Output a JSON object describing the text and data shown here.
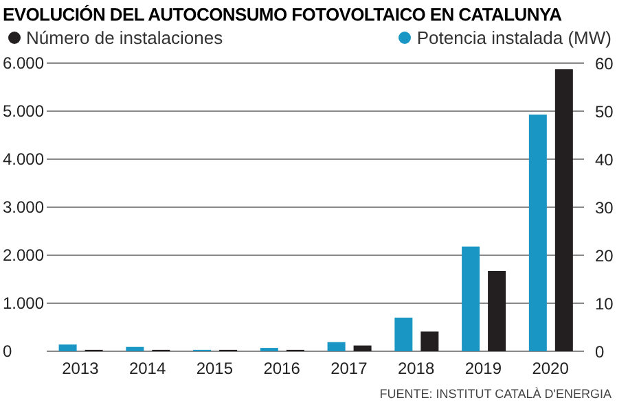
{
  "chart_data": {
    "type": "bar",
    "title": "EVOLUCIÓN DEL AUTOCONSUMO FOTOVOLTAICO EN CATALUNYA",
    "categories": [
      "2013",
      "2014",
      "2015",
      "2016",
      "2017",
      "2018",
      "2019",
      "2020"
    ],
    "series": [
      {
        "name": "Potencia instalada (MW)",
        "color": "#1a96c4",
        "axis": "y2",
        "values": [
          1.4,
          0.9,
          0.3,
          0.7,
          1.9,
          7.0,
          21.8,
          49.3
        ]
      },
      {
        "name": "Número de instalaciones",
        "color": "#231f20",
        "axis": "y",
        "values": [
          30,
          30,
          30,
          30,
          120,
          410,
          1670,
          5870
        ]
      }
    ],
    "ylim": [
      0,
      6000
    ],
    "yticks": [
      {
        "value": 0,
        "label": "0"
      },
      {
        "value": 1000,
        "label": "1.000"
      },
      {
        "value": 2000,
        "label": "2.000"
      },
      {
        "value": 3000,
        "label": "3.000"
      },
      {
        "value": 4000,
        "label": "4.000"
      },
      {
        "value": 5000,
        "label": "5.000"
      },
      {
        "value": 6000,
        "label": "6.000"
      }
    ],
    "y2lim": [
      0,
      60
    ],
    "y2ticks": [
      0,
      10,
      20,
      30,
      40,
      50,
      60
    ],
    "grid": "y",
    "legend": "top",
    "annotations": [
      "FUENTE: INSTITUT CATALÀ D'ENERGIA"
    ]
  }
}
